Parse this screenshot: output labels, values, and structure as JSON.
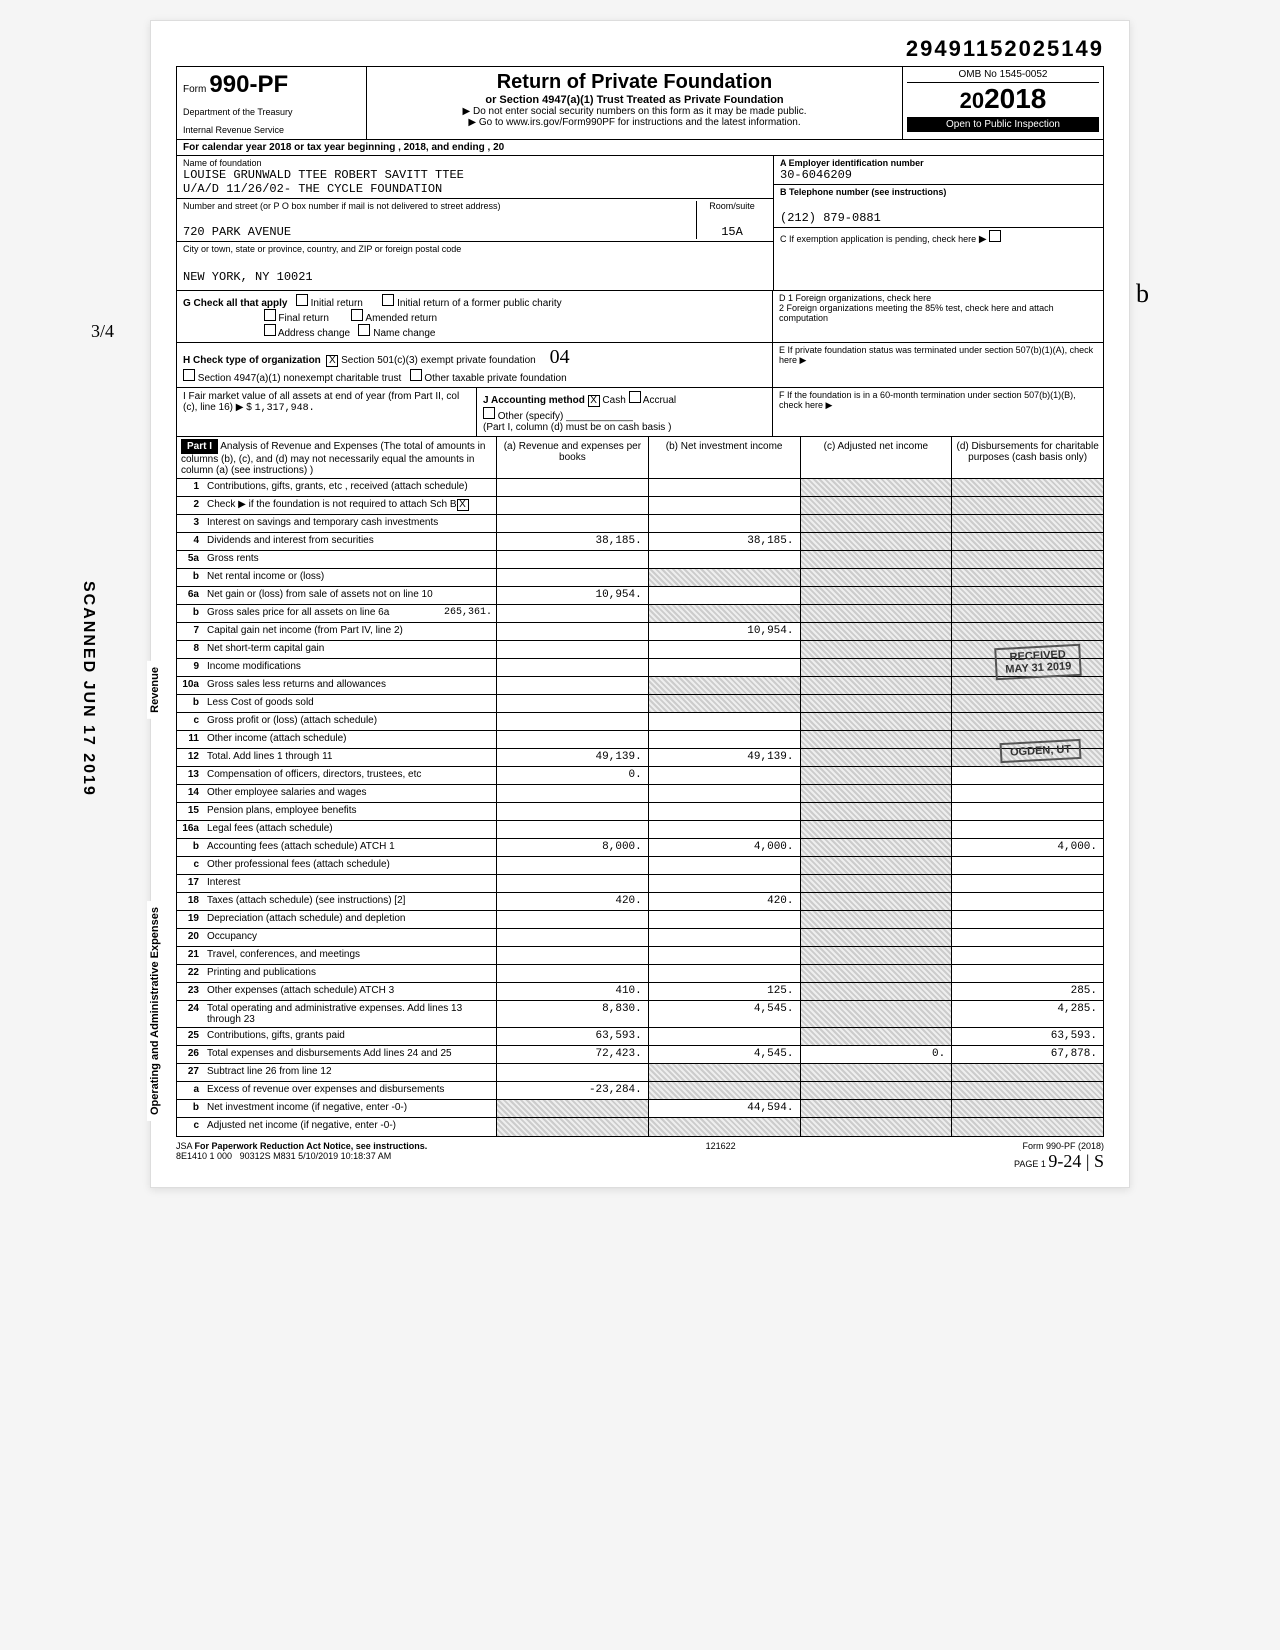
{
  "dln": "29491152025149",
  "form": {
    "prefix": "Form",
    "number": "990-PF",
    "title": "Return of Private Foundation",
    "subtitle": "or Section 4947(a)(1) Trust Treated as Private Foundation",
    "note1": "▶ Do not enter social security numbers on this form as it may be made public.",
    "note2": "▶ Go to www.irs.gov/Form990PF for instructions and the latest information.",
    "dept": "Department of the Treasury",
    "irs": "Internal Revenue Service",
    "omb": "OMB No 1545-0052",
    "year": "2018",
    "year_prefix": "20",
    "inspect": "Open to Public Inspection"
  },
  "cal": "For calendar year 2018 or tax year beginning                     , 2018, and ending                     , 20",
  "foundation": {
    "name_lbl": "Name of foundation",
    "name1": "LOUISE GRUNWALD TTEE ROBERT SAVITT TTEE",
    "name2": "U/A/D 11/26/02- THE CYCLE FOUNDATION",
    "addr_lbl": "Number and street (or P O box number if mail is not delivered to street address)",
    "addr": "720 PARK AVENUE",
    "room_lbl": "Room/suite",
    "room": "15A",
    "city_lbl": "City or town, state or province, country, and ZIP or foreign postal code",
    "city": "NEW YORK, NY 10021"
  },
  "boxA": {
    "lbl": "A  Employer identification number",
    "val": "30-6046209"
  },
  "boxB": {
    "lbl": "B  Telephone number (see instructions)",
    "val": "(212) 879-0881"
  },
  "boxC": {
    "lbl": "C  If exemption application is pending, check here"
  },
  "boxD": {
    "d1": "D 1  Foreign organizations, check here",
    "d2": "2  Foreign organizations meeting the 85% test, check here and attach computation"
  },
  "boxE": {
    "lbl": "E  If private foundation status was terminated under section 507(b)(1)(A), check here"
  },
  "boxF": {
    "lbl": "F  If the foundation is in a 60-month termination under section 507(b)(1)(B), check here"
  },
  "rowG": {
    "lbl": "G  Check all that apply",
    "opts": [
      "Initial return",
      "Final return",
      "Address change",
      "Initial return of a former public charity",
      "Amended return",
      "Name change"
    ]
  },
  "rowH": {
    "lbl": "H  Check type of organization",
    "opt1": "Section 501(c)(3) exempt private foundation",
    "opt1_chk": "X",
    "opt2": "Section 4947(a)(1) nonexempt charitable trust",
    "opt3": "Other taxable private foundation"
  },
  "rowI": {
    "lbl": "I   Fair market value of all assets at end of year (from Part II, col (c), line 16) ▶ $",
    "val": "1,317,948."
  },
  "rowJ": {
    "lbl": "J  Accounting method",
    "cash": "Cash",
    "cash_chk": "X",
    "accrual": "Accrual",
    "other": "Other (specify)",
    "note": "(Part I, column (d) must be on cash basis )"
  },
  "part1": {
    "label": "Part I",
    "desc": "Analysis of Revenue and Expenses (The total of amounts in columns (b), (c), and (d) may not necessarily equal the amounts in column (a) (see instructions) )",
    "colA": "(a) Revenue and expenses per books",
    "colB": "(b) Net investment income",
    "colC": "(c) Adjusted net income",
    "colD": "(d) Disbursements for charitable purposes (cash basis only)"
  },
  "lines": {
    "l1": {
      "no": "1",
      "desc": "Contributions, gifts, grants, etc , received (attach schedule)"
    },
    "l2": {
      "no": "2",
      "desc": "Check ▶        if the foundation is not required to attach Sch B",
      "chk": "X"
    },
    "l3": {
      "no": "3",
      "desc": "Interest on savings and temporary cash investments"
    },
    "l4": {
      "no": "4",
      "desc": "Dividends and interest from securities",
      "a": "38,185.",
      "b": "38,185."
    },
    "l5a": {
      "no": "5a",
      "desc": "Gross rents"
    },
    "l5b": {
      "no": "b",
      "desc": "Net rental income or (loss)"
    },
    "l6a": {
      "no": "6a",
      "desc": "Net gain or (loss) from sale of assets not on line 10",
      "a": "10,954."
    },
    "l6b": {
      "no": "b",
      "desc": "Gross sales price for all assets on line 6a",
      "inset": "265,361."
    },
    "l7": {
      "no": "7",
      "desc": "Capital gain net income (from Part IV, line 2)",
      "b": "10,954."
    },
    "l8": {
      "no": "8",
      "desc": "Net short-term capital gain"
    },
    "l9": {
      "no": "9",
      "desc": "Income modifications"
    },
    "l10a": {
      "no": "10a",
      "desc": "Gross sales less returns and allowances"
    },
    "l10b": {
      "no": "b",
      "desc": "Less Cost of goods sold"
    },
    "l10c": {
      "no": "c",
      "desc": "Gross profit or (loss) (attach schedule)"
    },
    "l11": {
      "no": "11",
      "desc": "Other income (attach schedule)"
    },
    "l12": {
      "no": "12",
      "desc": "Total. Add lines 1 through 11",
      "a": "49,139.",
      "b": "49,139."
    },
    "l13": {
      "no": "13",
      "desc": "Compensation of officers, directors, trustees, etc",
      "a": "0."
    },
    "l14": {
      "no": "14",
      "desc": "Other employee salaries and wages"
    },
    "l15": {
      "no": "15",
      "desc": "Pension plans, employee benefits"
    },
    "l16a": {
      "no": "16a",
      "desc": "Legal fees (attach schedule)"
    },
    "l16b": {
      "no": "b",
      "desc": "Accounting fees (attach schedule) ATCH 1",
      "a": "8,000.",
      "b": "4,000.",
      "d": "4,000."
    },
    "l16c": {
      "no": "c",
      "desc": "Other professional fees (attach schedule)"
    },
    "l17": {
      "no": "17",
      "desc": "Interest"
    },
    "l18": {
      "no": "18",
      "desc": "Taxes (attach schedule) (see instructions) [2]",
      "a": "420.",
      "b": "420."
    },
    "l19": {
      "no": "19",
      "desc": "Depreciation (attach schedule) and depletion"
    },
    "l20": {
      "no": "20",
      "desc": "Occupancy"
    },
    "l21": {
      "no": "21",
      "desc": "Travel, conferences, and meetings"
    },
    "l22": {
      "no": "22",
      "desc": "Printing and publications"
    },
    "l23": {
      "no": "23",
      "desc": "Other expenses (attach schedule) ATCH 3",
      "a": "410.",
      "b": "125.",
      "d": "285."
    },
    "l24": {
      "no": "24",
      "desc": "Total operating and administrative expenses. Add lines 13 through 23",
      "a": "8,830.",
      "b": "4,545.",
      "d": "4,285."
    },
    "l25": {
      "no": "25",
      "desc": "Contributions, gifts, grants paid",
      "a": "63,593.",
      "d": "63,593."
    },
    "l26": {
      "no": "26",
      "desc": "Total expenses and disbursements Add lines 24 and 25",
      "a": "72,423.",
      "b": "4,545.",
      "c": "0.",
      "d": "67,878."
    },
    "l27": {
      "no": "27",
      "desc": "Subtract line 26 from line 12"
    },
    "l27a": {
      "no": "a",
      "desc": "Excess of revenue over expenses and disbursements",
      "a": "-23,284."
    },
    "l27b": {
      "no": "b",
      "desc": "Net investment income (if negative, enter -0-)",
      "b": "44,594."
    },
    "l27c": {
      "no": "c",
      "desc": "Adjusted net income (if negative, enter -0-)"
    }
  },
  "sideRev": "Revenue",
  "sideExp": "Operating and Administrative Expenses",
  "stamps": {
    "received": "RECEIVED",
    "date": "MAY 31 2019",
    "ogden": "OGDEN, UT"
  },
  "scanned": "SCANNED JUN 17 2019",
  "footer": {
    "jsa": "JSA",
    "paperwork": "For Paperwork Reduction Act Notice, see instructions.",
    "code": "8E1410 1 000",
    "batch": "90312S M831  5/10/2019   10:18:37 AM",
    "seq": "121622",
    "formref": "Form 990-PF (2018)",
    "page": "PAGE 1"
  },
  "hand": {
    "h34": "3/4",
    "h924": "9-24 | S",
    "h04": "04",
    "hb": "b"
  }
}
